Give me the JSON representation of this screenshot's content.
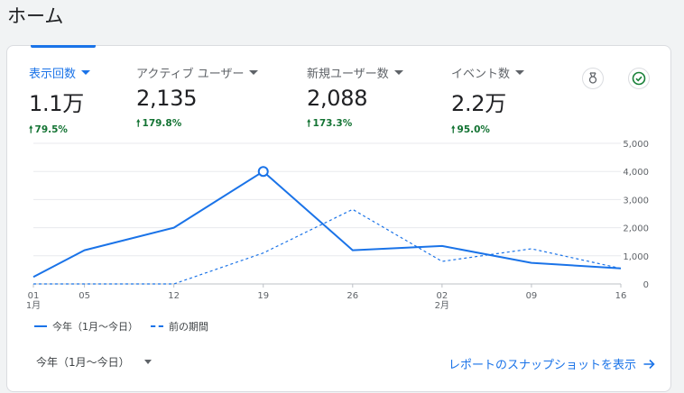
{
  "page": {
    "title": "ホーム"
  },
  "metrics": [
    {
      "label": "表示回数",
      "value": "1.1万",
      "delta": "79.5%",
      "active": true
    },
    {
      "label": "アクティブ ユーザー",
      "value": "2,135",
      "delta": "179.8%",
      "active": false
    },
    {
      "label": "新規ユーザー数",
      "value": "2,088",
      "delta": "173.3%",
      "active": false
    },
    {
      "label": "イベント数",
      "value": "2.2万",
      "delta": "95.0%",
      "active": false
    }
  ],
  "icons": {
    "insights": "insights-badge-icon",
    "status": "check-circle-icon",
    "delta": "arrow-up-icon"
  },
  "colors": {
    "accent": "#1a73e8",
    "positive": "#137333",
    "status_ok": "#188038"
  },
  "chart_data": {
    "type": "line",
    "x": [
      "01\n1月",
      "05",
      "12",
      "19",
      "26",
      "02\n2月",
      "09",
      "16"
    ],
    "x_days": [
      1,
      5,
      12,
      19,
      26,
      33,
      40,
      47
    ],
    "ylim": [
      0,
      5000
    ],
    "yticks": [
      0,
      1000,
      2000,
      3000,
      4000,
      5000
    ],
    "ytick_labels": [
      "0",
      "1,000",
      "2,000",
      "3,000",
      "4,000",
      "5,000"
    ],
    "series": [
      {
        "name": "今年（1月～今日）",
        "style": "solid",
        "points": [
          [
            1,
            250
          ],
          [
            5,
            1200
          ],
          [
            12,
            2000
          ],
          [
            19,
            4000
          ],
          [
            26,
            1200
          ],
          [
            33,
            1350
          ],
          [
            40,
            750
          ],
          [
            47,
            550
          ]
        ],
        "highlight_x": 19
      },
      {
        "name": "前の期間",
        "style": "dashed",
        "points": [
          [
            1,
            0
          ],
          [
            12,
            0
          ],
          [
            19,
            1100
          ],
          [
            26,
            2650
          ],
          [
            33,
            800
          ],
          [
            40,
            1250
          ],
          [
            47,
            550
          ]
        ]
      }
    ],
    "legend_position": "bottom-left",
    "grid": true
  },
  "footer": {
    "date_range": "今年（1月～今日）",
    "report_link": "レポートのスナップショットを表示"
  }
}
